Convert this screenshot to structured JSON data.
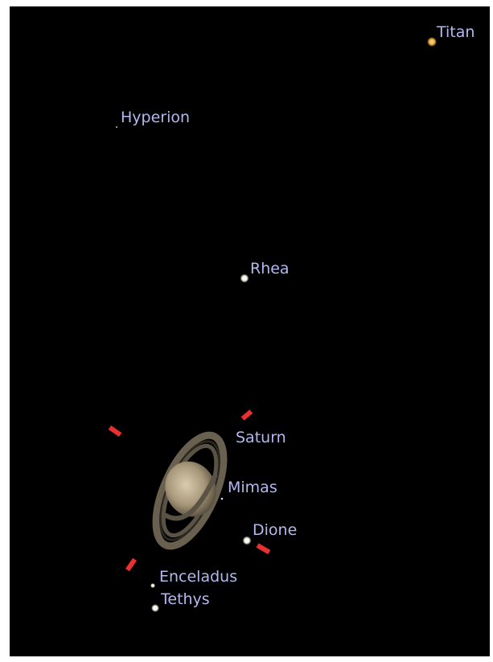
{
  "objects": [
    {
      "label": "Titan"
    },
    {
      "label": "Hyperion"
    },
    {
      "label": "Rhea"
    },
    {
      "label": "Saturn"
    },
    {
      "label": "Mimas"
    },
    {
      "label": "Dione"
    },
    {
      "label": "Enceladus"
    },
    {
      "label": "Tethys"
    }
  ]
}
